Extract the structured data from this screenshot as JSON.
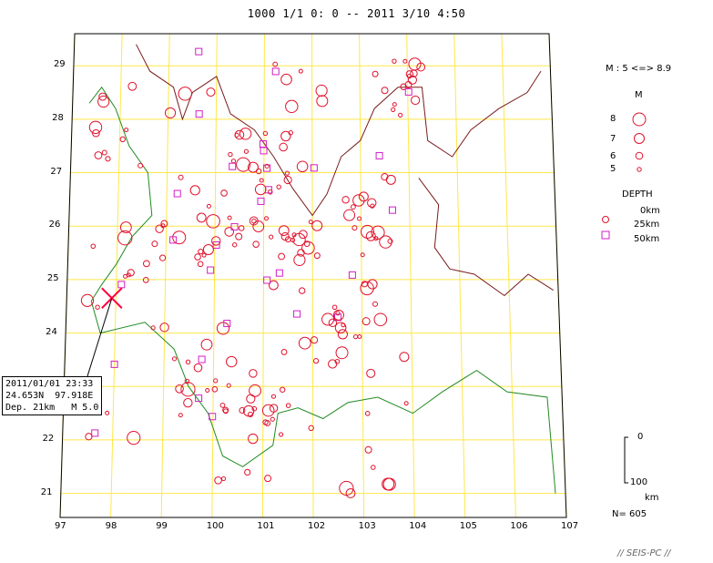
{
  "title": "1000 1/1  0: 0 -- 2011  3/10  4:50",
  "colors": {
    "grid": "#ffe74a",
    "frame": "#000000",
    "border_national": "#228b22",
    "border_province": "#7a1b1b",
    "shallow": "#e0112b",
    "deep": "#d21ec8",
    "selected": "#ff0040"
  },
  "axes": {
    "lon_labels": [
      "97",
      "98",
      "99",
      "100",
      "101",
      "102",
      "103",
      "104",
      "105",
      "106",
      "107"
    ],
    "lat_labels": [
      "21",
      "22",
      "23",
      "24",
      "25",
      "26",
      "27",
      "28",
      "29"
    ]
  },
  "legend": {
    "range": "M : 5 <=> 8.9",
    "magnitude_title": "M",
    "magnitudes": [
      "8",
      "7",
      "6",
      "5"
    ],
    "depth_title": "DEPTH",
    "depths": [
      "0km",
      "25km",
      "50km"
    ]
  },
  "selected_event": {
    "line1": "2011/01/01 23:33",
    "line2": "24.653N  97.918E",
    "line3": "Dep. 21km   M 5.0"
  },
  "scale": {
    "top": "0",
    "bottom": "100",
    "unit": "km"
  },
  "count": "N= 605",
  "watermark": "// SEIS-PC //",
  "events_summary": {
    "count_shown": 605,
    "magnitude_range": [
      5,
      8.9
    ],
    "depth_range_km": [
      0,
      50
    ]
  }
}
